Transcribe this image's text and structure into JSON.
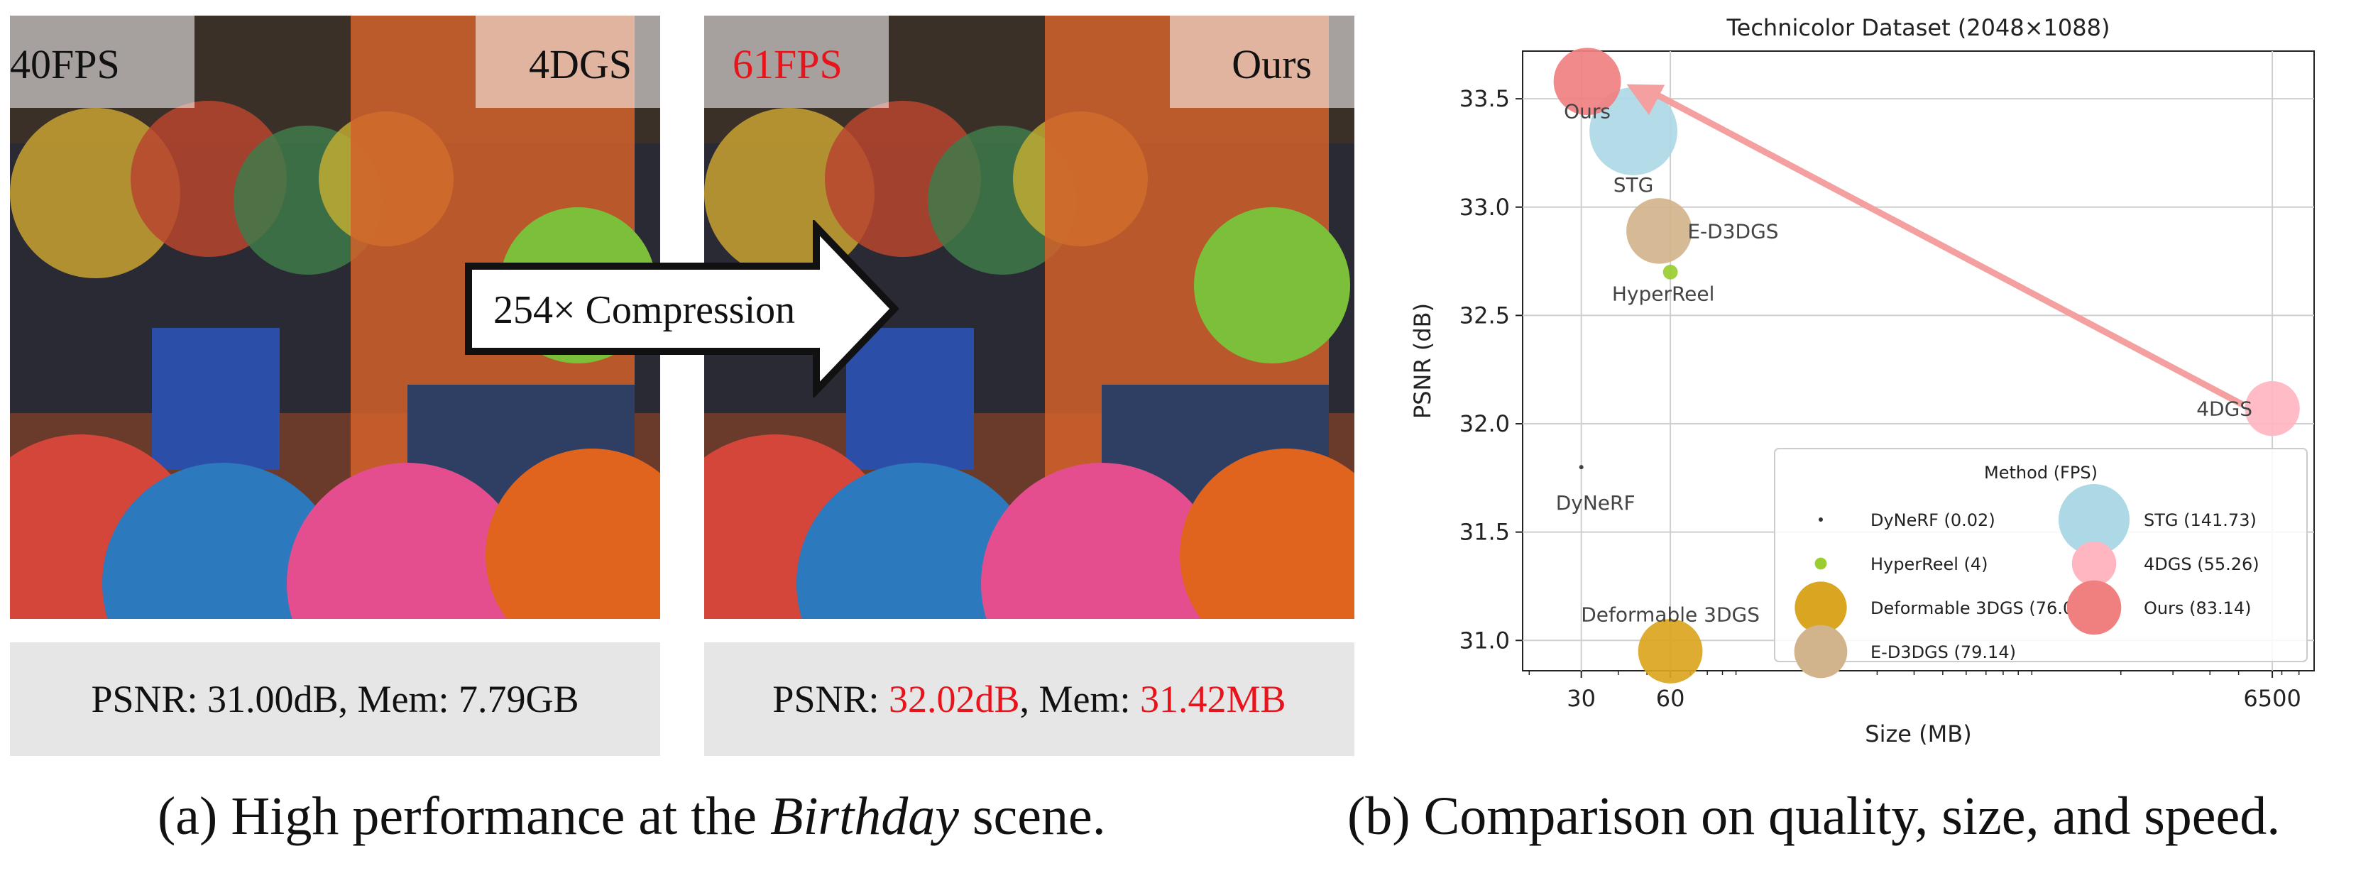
{
  "panel_a": {
    "left_image": {
      "fps_label": "40FPS",
      "method_label": "4DGS"
    },
    "right_image": {
      "fps_label": "61FPS",
      "method_label": "Ours"
    },
    "arrow_label": "254× Compression",
    "left_metrics": {
      "text": "PSNR: 31.00dB, Mem: 7.79GB"
    },
    "right_metrics": {
      "psnr_prefix": "PSNR: ",
      "psnr_value": "32.02dB",
      "mem_prefix": ", Mem: ",
      "mem_value": "31.42MB"
    },
    "caption_prefix": "(a) High performance at the ",
    "caption_italic": "Birthday",
    "caption_suffix": " scene."
  },
  "panel_b": {
    "caption": "(b) Comparison on quality, size, and speed."
  },
  "chart_data": {
    "type": "scatter",
    "title": "Technicolor Dataset (2048×1088)",
    "xlabel": "Size (MB)",
    "ylabel": "PSNR (dB)",
    "x_scale": "log",
    "xlim": [
      19,
      9000
    ],
    "ylim": [
      30.86,
      33.72
    ],
    "x_ticks": [
      30,
      60,
      6500
    ],
    "y_ticks": [
      31.0,
      31.5,
      32.0,
      32.5,
      33.0,
      33.5
    ],
    "y_tick_labels": [
      "31.0",
      "31.5",
      "32.0",
      "32.5",
      "33.0",
      "33.5"
    ],
    "grid": true,
    "legend_title": "Method (FPS)",
    "legend_position": "bottom-right",
    "points": [
      {
        "name": "DyNeRF",
        "legend": "DyNeRF (0.02)",
        "fps": 0.02,
        "x": 30,
        "y": 31.8,
        "color": "#333333"
      },
      {
        "name": "HyperReel",
        "legend": "HyperReel (4)",
        "fps": 4,
        "x": 60,
        "y": 32.7,
        "color": "#9acd32"
      },
      {
        "name": "Deformable 3DGS",
        "legend": "Deformable 3DGS (76.09)",
        "fps": 76.09,
        "x": 60,
        "y": 30.95,
        "color": "#daa520"
      },
      {
        "name": "E-D3DGS",
        "legend": "E-D3DGS (79.14)",
        "fps": 79.14,
        "x": 55,
        "y": 32.89,
        "color": "#d2b48c"
      },
      {
        "name": "STG",
        "legend": "STG (141.73)",
        "fps": 141.73,
        "x": 45,
        "y": 33.35,
        "color": "#add8e6"
      },
      {
        "name": "4DGS",
        "legend": "4DGS (55.26)",
        "fps": 55.26,
        "x": 6500,
        "y": 32.07,
        "color": "#ffb6c1"
      },
      {
        "name": "Ours",
        "legend": "Ours (83.14)",
        "fps": 83.14,
        "x": 31.42,
        "y": 33.58,
        "color": "#f08080"
      }
    ],
    "arrow": {
      "from": "4DGS",
      "to": "Ours",
      "color": "#f4a0a0"
    }
  }
}
